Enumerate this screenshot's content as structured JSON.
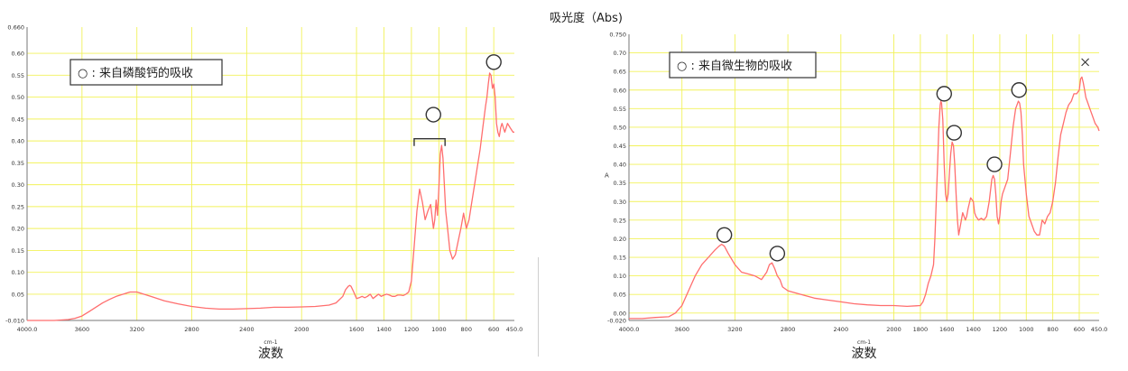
{
  "chart_data": [
    {
      "type": "line",
      "xlabel": "波数",
      "x_unit": "cm-1",
      "ylabel": "",
      "xlim": [
        4000,
        450
      ],
      "ylim": [
        -0.01,
        0.66
      ],
      "x_ticks": [
        "4000.0",
        "3600",
        "3200",
        "2800",
        "2400",
        "2000",
        "1600",
        "1400",
        "1200",
        "1000",
        "800",
        "600",
        "450.0"
      ],
      "y_ticks": [
        "-0.010",
        "0.05",
        "0.10",
        "0.15",
        "0.20",
        "0.25",
        "0.30",
        "0.35",
        "0.40",
        "0.45",
        "0.50",
        "0.55",
        "0.60",
        "0.660"
      ],
      "legend": {
        "text": "○ : 来自磷酸钙的吸收",
        "placement": "top-left"
      },
      "line_color": "#ff6e6e",
      "grid_color": "#f2f25a",
      "series": [
        {
          "x": [
            4000,
            3900,
            3800,
            3700,
            3650,
            3600,
            3550,
            3500,
            3450,
            3400,
            3350,
            3300,
            3250,
            3200,
            3150,
            3100,
            3000,
            2900,
            2800,
            2700,
            2600,
            2500,
            2400,
            2300,
            2200,
            2100,
            2000,
            1900,
            1800,
            1750,
            1700,
            1680,
            1660,
            1650,
            1640,
            1620,
            1600,
            1580,
            1560,
            1540,
            1520,
            1500,
            1480,
            1460,
            1440,
            1420,
            1400,
            1380,
            1360,
            1340,
            1320,
            1300,
            1280,
            1260,
            1240,
            1220,
            1200,
            1180,
            1160,
            1140,
            1120,
            1100,
            1080,
            1060,
            1040,
            1030,
            1020,
            1010,
            1000,
            990,
            980,
            970,
            960,
            950,
            940,
            930,
            920,
            900,
            880,
            860,
            840,
            820,
            800,
            780,
            760,
            740,
            720,
            700,
            680,
            660,
            650,
            640,
            630,
            620,
            610,
            600,
            590,
            580,
            570,
            560,
            550,
            540,
            520,
            500,
            480,
            460,
            450
          ],
          "y": [
            -0.01,
            -0.01,
            -0.01,
            -0.008,
            -0.005,
            0.0,
            0.01,
            0.02,
            0.03,
            0.038,
            0.045,
            0.05,
            0.055,
            0.055,
            0.05,
            0.045,
            0.035,
            0.028,
            0.022,
            0.018,
            0.016,
            0.016,
            0.017,
            0.018,
            0.02,
            0.02,
            0.021,
            0.022,
            0.025,
            0.03,
            0.045,
            0.06,
            0.068,
            0.07,
            0.068,
            0.055,
            0.04,
            0.042,
            0.045,
            0.042,
            0.045,
            0.05,
            0.04,
            0.045,
            0.05,
            0.045,
            0.048,
            0.05,
            0.048,
            0.045,
            0.045,
            0.048,
            0.048,
            0.047,
            0.05,
            0.055,
            0.08,
            0.16,
            0.24,
            0.29,
            0.26,
            0.22,
            0.24,
            0.255,
            0.2,
            0.22,
            0.265,
            0.23,
            0.29,
            0.37,
            0.39,
            0.36,
            0.3,
            0.24,
            0.21,
            0.18,
            0.15,
            0.13,
            0.14,
            0.17,
            0.2,
            0.235,
            0.2,
            0.22,
            0.26,
            0.3,
            0.34,
            0.38,
            0.43,
            0.48,
            0.5,
            0.53,
            0.555,
            0.55,
            0.52,
            0.53,
            0.5,
            0.44,
            0.42,
            0.41,
            0.43,
            0.44,
            0.42,
            0.44,
            0.43,
            0.42,
            0.42
          ]
        }
      ],
      "circle_markers": [
        {
          "x": 1040,
          "y": 0.46
        },
        {
          "x": 600,
          "y": 0.58
        }
      ],
      "bracket": {
        "x_from": 1180,
        "x_to": 955,
        "y": 0.405
      }
    },
    {
      "type": "line",
      "title": "吸光度（Abs)",
      "xlabel": "波数",
      "x_unit": "cm-1",
      "ylabel": "A",
      "xlim": [
        4000,
        450
      ],
      "ylim": [
        -0.02,
        0.75
      ],
      "x_ticks": [
        "4000.0",
        "3600",
        "3200",
        "2800",
        "2400",
        "2000",
        "1800",
        "1600",
        "1400",
        "1200",
        "1000",
        "800",
        "600",
        "450.0"
      ],
      "y_ticks": [
        "-0.020",
        "0.00",
        "0.05",
        "0.10",
        "0.15",
        "0.20",
        "0.25",
        "0.30",
        "0.35",
        "0.40",
        "0.45",
        "0.50",
        "0.55",
        "0.60",
        "0.65",
        "0.70",
        "0.750"
      ],
      "legend": {
        "text": "○ : 来自微生物的吸收",
        "placement": "top-left"
      },
      "line_color": "#ff6e6e",
      "grid_color": "#f2f25a",
      "series": [
        {
          "x": [
            4000,
            3900,
            3800,
            3700,
            3650,
            3600,
            3550,
            3500,
            3450,
            3400,
            3350,
            3320,
            3300,
            3280,
            3250,
            3200,
            3150,
            3100,
            3050,
            3000,
            2980,
            2960,
            2940,
            2920,
            2900,
            2880,
            2860,
            2840,
            2800,
            2700,
            2600,
            2500,
            2400,
            2300,
            2200,
            2100,
            2000,
            1900,
            1800,
            1780,
            1760,
            1740,
            1720,
            1700,
            1690,
            1680,
            1670,
            1660,
            1650,
            1645,
            1640,
            1630,
            1620,
            1610,
            1600,
            1590,
            1580,
            1570,
            1560,
            1550,
            1540,
            1530,
            1520,
            1510,
            1500,
            1480,
            1460,
            1450,
            1440,
            1420,
            1400,
            1390,
            1380,
            1360,
            1340,
            1320,
            1300,
            1280,
            1260,
            1250,
            1240,
            1230,
            1220,
            1210,
            1200,
            1190,
            1180,
            1160,
            1140,
            1120,
            1100,
            1080,
            1060,
            1050,
            1040,
            1030,
            1020,
            1000,
            980,
            960,
            940,
            920,
            900,
            880,
            860,
            840,
            820,
            800,
            780,
            760,
            740,
            720,
            700,
            680,
            660,
            640,
            620,
            600,
            590,
            580,
            570,
            560,
            550,
            540,
            520,
            500,
            480,
            460,
            450
          ],
          "y": [
            -0.015,
            -0.015,
            -0.012,
            -0.01,
            0.0,
            0.02,
            0.06,
            0.1,
            0.13,
            0.15,
            0.17,
            0.18,
            0.185,
            0.18,
            0.16,
            0.13,
            0.11,
            0.105,
            0.1,
            0.09,
            0.1,
            0.11,
            0.13,
            0.135,
            0.12,
            0.1,
            0.09,
            0.07,
            0.06,
            0.05,
            0.04,
            0.035,
            0.03,
            0.025,
            0.022,
            0.02,
            0.02,
            0.018,
            0.02,
            0.03,
            0.05,
            0.08,
            0.1,
            0.13,
            0.2,
            0.3,
            0.4,
            0.5,
            0.56,
            0.57,
            0.565,
            0.52,
            0.4,
            0.32,
            0.3,
            0.32,
            0.38,
            0.43,
            0.46,
            0.45,
            0.4,
            0.32,
            0.25,
            0.21,
            0.23,
            0.27,
            0.25,
            0.26,
            0.28,
            0.31,
            0.3,
            0.27,
            0.26,
            0.25,
            0.255,
            0.25,
            0.26,
            0.3,
            0.36,
            0.37,
            0.36,
            0.32,
            0.26,
            0.24,
            0.26,
            0.3,
            0.32,
            0.34,
            0.36,
            0.43,
            0.5,
            0.55,
            0.57,
            0.565,
            0.54,
            0.48,
            0.4,
            0.32,
            0.26,
            0.24,
            0.22,
            0.21,
            0.21,
            0.25,
            0.24,
            0.26,
            0.27,
            0.3,
            0.35,
            0.42,
            0.48,
            0.51,
            0.54,
            0.56,
            0.57,
            0.59,
            0.59,
            0.6,
            0.63,
            0.635,
            0.62,
            0.6,
            0.58,
            0.57,
            0.55,
            0.53,
            0.51,
            0.5,
            0.49
          ]
        }
      ],
      "circle_markers": [
        {
          "x": 3280,
          "y": 0.21
        },
        {
          "x": 2880,
          "y": 0.16
        },
        {
          "x": 1620,
          "y": 0.59
        },
        {
          "x": 1545,
          "y": 0.485
        },
        {
          "x": 1240,
          "y": 0.4
        },
        {
          "x": 1055,
          "y": 0.6
        }
      ],
      "x_marker": {
        "x": 555,
        "y": 0.675
      }
    }
  ]
}
